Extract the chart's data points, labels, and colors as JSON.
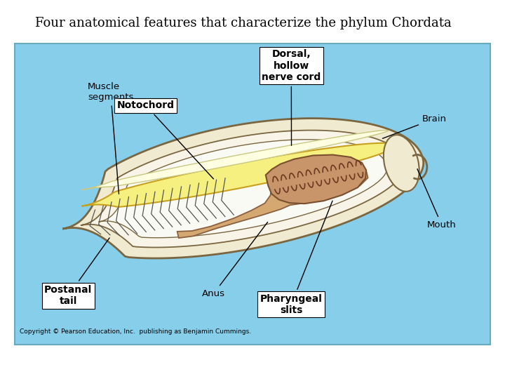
{
  "title": "Four anatomical features that characterize the phylum Chordata",
  "title_fontsize": 13,
  "background_color": "#87CEEB",
  "fig_bg": "#FFFFFF",
  "copyright": "Copyright © Pearson Education, Inc.  publishing as Benjamin Cummings.",
  "colors": {
    "outer_body": "#F0EAD0",
    "outer_body_edge": "#7A6640",
    "inner_body": "#FAFAF0",
    "notochord_fill": "#F5F080",
    "notochord_edge": "#C8A020",
    "nerve_fill": "#FEFEE8",
    "nerve_edge": "#C0C080",
    "pharyngeal_fill": "#C8956A",
    "pharyngeal_edge": "#7A4F2D",
    "gut_fill": "#D4A870",
    "gut_edge": "#8B6040",
    "muscle_color": "#555555",
    "slit_fill": "#B07850",
    "slit_edge": "#6A3820"
  },
  "labels": {
    "muscle_segments": "Muscle\nsegments",
    "notochord": "Notochord",
    "dorsal_nerve": "Dorsal,\nhollow\nnerve cord",
    "brain": "Brain",
    "mouth": "Mouth",
    "anus": "Anus",
    "pharyngeal": "Pharyngeal\nslits",
    "postanal": "Postanal\ntail"
  }
}
